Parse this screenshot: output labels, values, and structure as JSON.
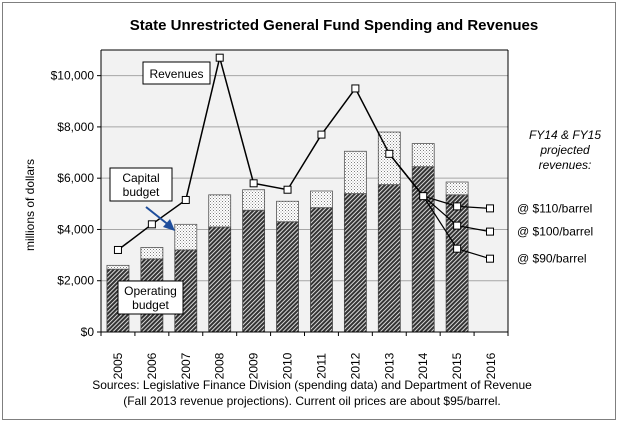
{
  "chart_data": {
    "type": "bar",
    "title": "State Unrestricted General Fund Spending and Revenues",
    "ylabel": "millions of dollars",
    "ylim": [
      0,
      11000
    ],
    "yticks": [
      0,
      2000,
      4000,
      6000,
      8000,
      10000
    ],
    "ytick_labels": [
      "$0",
      "$2,000",
      "$4,000",
      "$6,000",
      "$8,000",
      "$10,000"
    ],
    "categories": [
      "2005",
      "2006",
      "2007",
      "2008",
      "2009",
      "2010",
      "2011",
      "2012",
      "2013",
      "2014",
      "2015",
      "2016"
    ],
    "series": [
      {
        "name": "Operating budget",
        "values": [
          2450,
          2850,
          3200,
          4100,
          4750,
          4300,
          4850,
          5400,
          5750,
          6450,
          5350,
          null
        ]
      },
      {
        "name": "Capital budget",
        "values": [
          150,
          450,
          1000,
          1250,
          800,
          800,
          650,
          1650,
          2050,
          900,
          500,
          null
        ]
      }
    ],
    "revenues": {
      "name": "Revenues",
      "values": [
        3200,
        4200,
        5150,
        10700,
        5800,
        5550,
        7700,
        9500,
        6950,
        5300,
        null,
        null
      ]
    },
    "projections": [
      {
        "label": "@ $110/barrel",
        "values_2014_2015": [
          5300,
          4900
        ]
      },
      {
        "label": "@ $100/barrel",
        "values_2014_2015": [
          5300,
          4150
        ]
      },
      {
        "label": "@ $90/barrel",
        "values_2014_2015": [
          5300,
          3250
        ]
      }
    ],
    "annotations": {
      "revenues": "Revenues",
      "capital": [
        "Capital",
        "budget"
      ],
      "operating": [
        "Operating",
        "budget"
      ],
      "projected": [
        "FY14 & FY15",
        "projected",
        "revenues:"
      ]
    },
    "source_lines": [
      "Sources:  Legislative Finance Division (spending data) and Department of Revenue",
      "(Fall 2013 revenue projections).   Current oil prices are about $95/barrel."
    ],
    "grid": true,
    "legend": "none"
  },
  "colors": {
    "axis": "#000000",
    "grid": "#a6a6a6",
    "plot_bg": "#f2f2f2",
    "capital_fill": "#cfcfcf",
    "operating_fill": "#555555"
  }
}
